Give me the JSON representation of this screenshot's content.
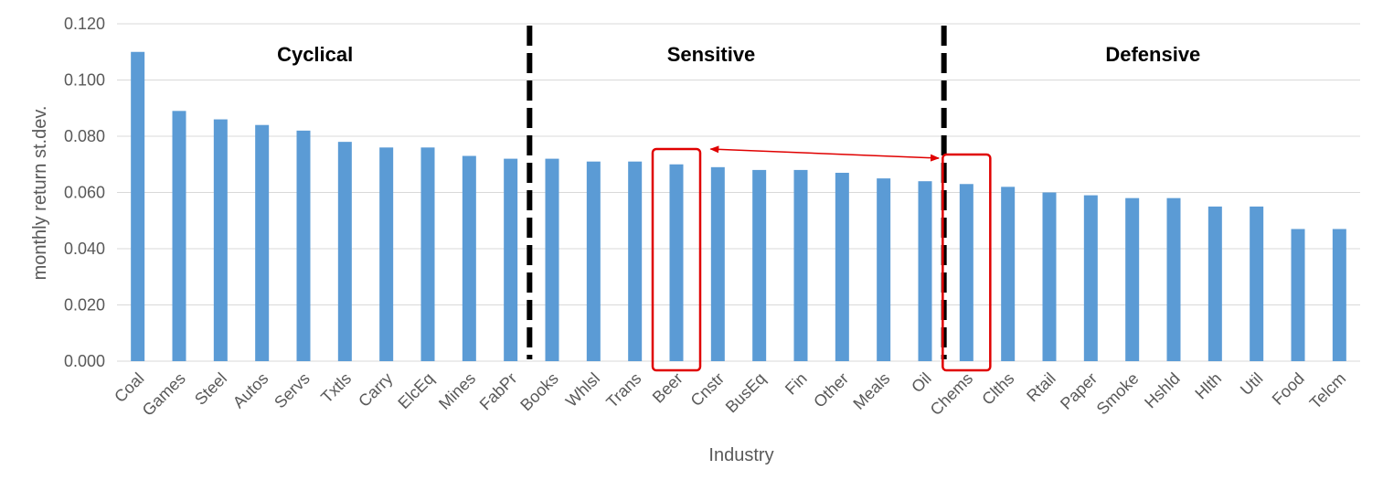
{
  "chart_data": {
    "type": "bar",
    "xlabel": "Industry",
    "ylabel": "monthly return st.dev.",
    "ylim": [
      0,
      0.12
    ],
    "yticks": [
      0.0,
      0.02,
      0.04,
      0.06,
      0.08,
      0.1,
      0.12
    ],
    "ytick_labels": [
      "0.000",
      "0.020",
      "0.040",
      "0.060",
      "0.080",
      "0.100",
      "0.120"
    ],
    "grid": true,
    "bar_color": "#5B9BD5",
    "categories": [
      "Coal",
      "Games",
      "Steel",
      "Autos",
      "Servs",
      "Txtls",
      "Carry",
      "ElcEq",
      "Mines",
      "FabPr",
      "Books",
      "Whlsl",
      "Trans",
      "Beer",
      "Cnstr",
      "BusEq",
      "Fin",
      "Other",
      "Meals",
      "Oil",
      "Chems",
      "Clths",
      "Rtail",
      "Paper",
      "Smoke",
      "Hshld",
      "Hlth",
      "Util",
      "Food",
      "Telcm"
    ],
    "values": [
      0.11,
      0.089,
      0.086,
      0.084,
      0.082,
      0.078,
      0.076,
      0.076,
      0.073,
      0.072,
      0.072,
      0.071,
      0.071,
      0.07,
      0.069,
      0.068,
      0.068,
      0.067,
      0.065,
      0.064,
      0.063,
      0.062,
      0.06,
      0.059,
      0.058,
      0.058,
      0.055,
      0.055,
      0.047,
      0.047
    ],
    "groups": [
      {
        "label": "Cyclical",
        "from": 0,
        "to": 9
      },
      {
        "label": "Sensitive",
        "from": 10,
        "to": 19
      },
      {
        "label": "Defensive",
        "from": 20,
        "to": 29
      }
    ],
    "dividers_after": [
      9,
      19
    ],
    "divider_color": "#000000",
    "highlight_boxes": [
      13,
      20
    ],
    "highlight_color": "#E00000",
    "arrow": {
      "from": 14,
      "to": 19,
      "color": "#E00000"
    }
  }
}
